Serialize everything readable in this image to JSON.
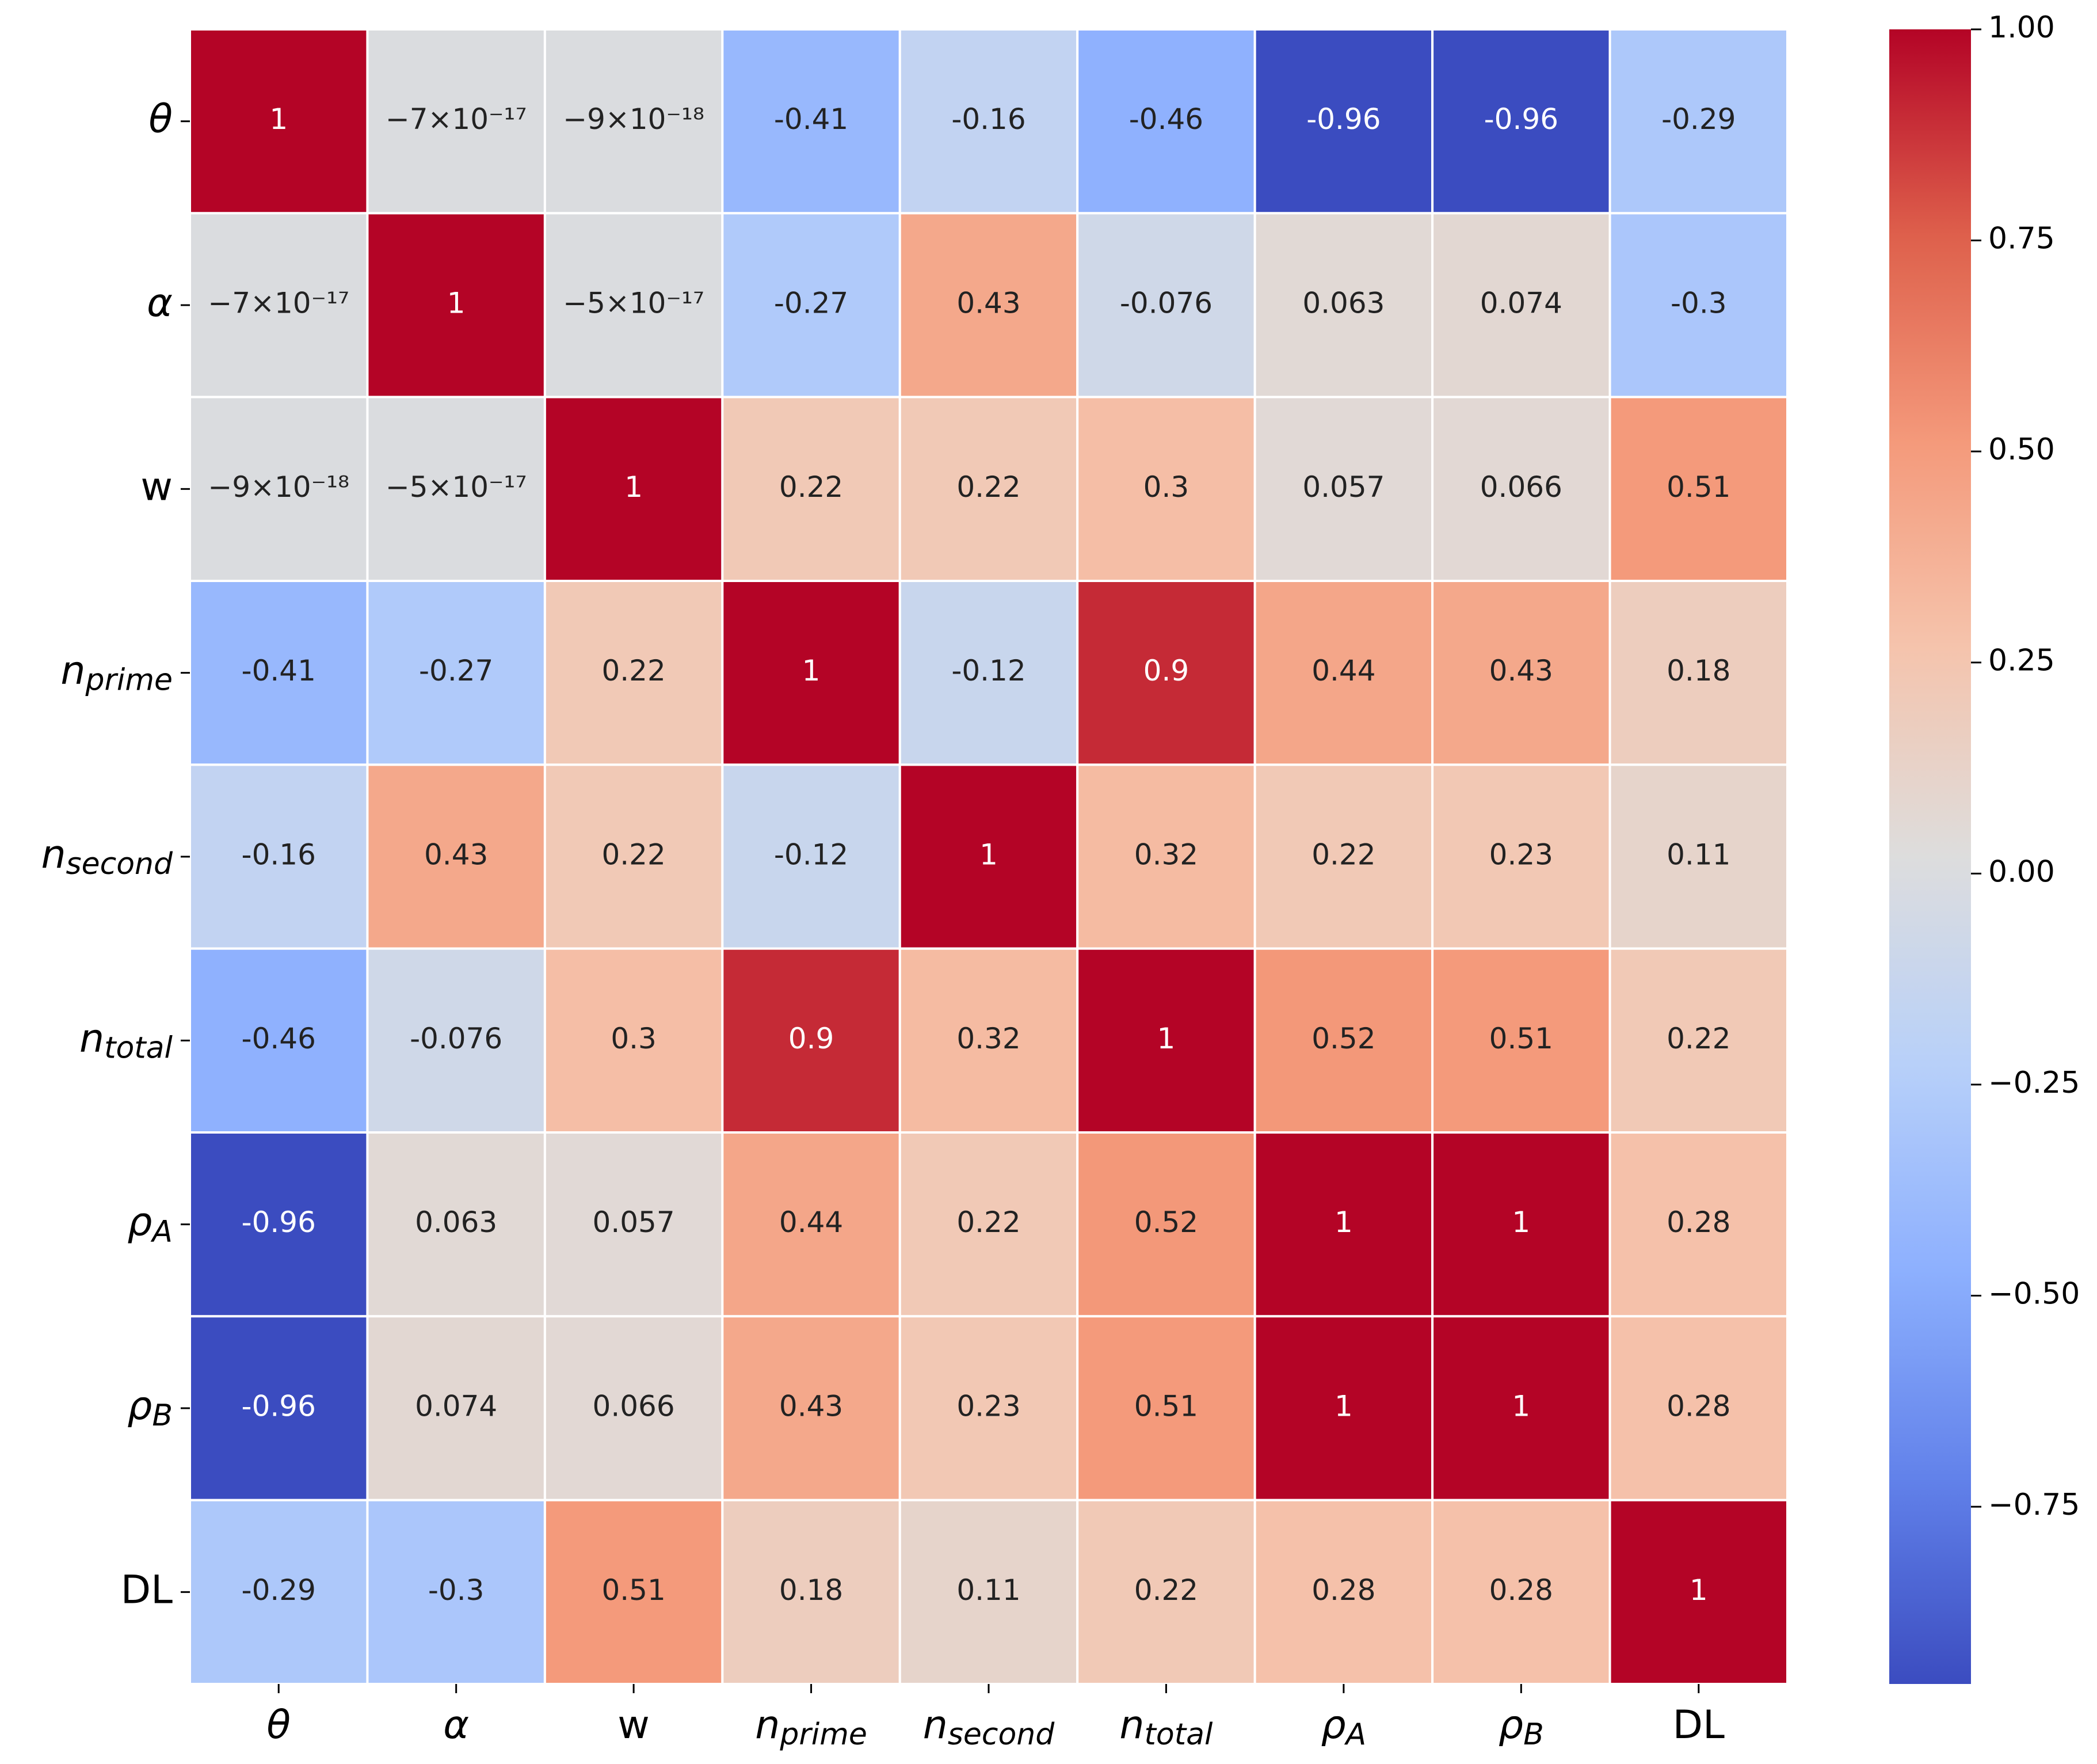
{
  "chart_data": {
    "type": "heatmap",
    "categories": [
      {
        "text": "θ",
        "italic": true
      },
      {
        "text": "α",
        "italic": true
      },
      {
        "text": "w",
        "italic": false
      },
      {
        "text": "n",
        "sub": "prime",
        "italic": true
      },
      {
        "text": "n",
        "sub": "second",
        "italic": true
      },
      {
        "text": "n",
        "sub": "total",
        "italic": true
      },
      {
        "text": "ρ",
        "sub": "A",
        "italic": true
      },
      {
        "text": "ρ",
        "sub": "B",
        "italic": true
      },
      {
        "text": "DL",
        "italic": false
      }
    ],
    "values": [
      [
        1,
        -7e-17,
        -9e-18,
        -0.41,
        -0.16,
        -0.46,
        -0.96,
        -0.96,
        -0.29
      ],
      [
        -7e-17,
        1,
        -5e-17,
        -0.27,
        0.43,
        -0.076,
        0.063,
        0.074,
        -0.3
      ],
      [
        -9e-18,
        -5e-17,
        1,
        0.22,
        0.22,
        0.3,
        0.057,
        0.066,
        0.51
      ],
      [
        -0.41,
        -0.27,
        0.22,
        1,
        -0.12,
        0.9,
        0.44,
        0.43,
        0.18
      ],
      [
        -0.16,
        0.43,
        0.22,
        -0.12,
        1,
        0.32,
        0.22,
        0.23,
        0.11
      ],
      [
        -0.46,
        -0.076,
        0.3,
        0.9,
        0.32,
        1,
        0.52,
        0.51,
        0.22
      ],
      [
        -0.96,
        0.063,
        0.057,
        0.44,
        0.22,
        0.52,
        1,
        1,
        0.28
      ],
      [
        -0.96,
        0.074,
        0.066,
        0.43,
        0.23,
        0.51,
        1,
        1,
        0.28
      ],
      [
        -0.29,
        -0.3,
        0.51,
        0.18,
        0.11,
        0.22,
        0.28,
        0.28,
        1
      ]
    ],
    "value_labels": [
      [
        "1",
        "−7×10⁻¹⁷",
        "−9×10⁻¹⁸",
        "-0.41",
        "-0.16",
        "-0.46",
        "-0.96",
        "-0.96",
        "-0.29"
      ],
      [
        "−7×10⁻¹⁷",
        "1",
        "−5×10⁻¹⁷",
        "-0.27",
        "0.43",
        "-0.076",
        "0.063",
        "0.074",
        "-0.3"
      ],
      [
        "−9×10⁻¹⁸",
        "−5×10⁻¹⁷",
        "1",
        "0.22",
        "0.22",
        "0.3",
        "0.057",
        "0.066",
        "0.51"
      ],
      [
        "-0.41",
        "-0.27",
        "0.22",
        "1",
        "-0.12",
        "0.9",
        "0.44",
        "0.43",
        "0.18"
      ],
      [
        "-0.16",
        "0.43",
        "0.22",
        "-0.12",
        "1",
        "0.32",
        "0.22",
        "0.23",
        "0.11"
      ],
      [
        "-0.46",
        "-0.076",
        "0.3",
        "0.9",
        "0.32",
        "1",
        "0.52",
        "0.51",
        "0.22"
      ],
      [
        "-0.96",
        "0.063",
        "0.057",
        "0.44",
        "0.22",
        "0.52",
        "1",
        "1",
        "0.28"
      ],
      [
        "-0.96",
        "0.074",
        "0.066",
        "0.43",
        "0.23",
        "0.51",
        "1",
        "1",
        "0.28"
      ],
      [
        "-0.29",
        "-0.3",
        "0.51",
        "0.18",
        "0.11",
        "0.22",
        "0.28",
        "0.28",
        "1"
      ]
    ],
    "colormap": "coolwarm",
    "clim": [
      -0.96,
      1
    ],
    "cticks": [
      {
        "value": 1,
        "label": "1.00"
      },
      {
        "value": 0.75,
        "label": "0.75"
      },
      {
        "value": 0.5,
        "label": "0.50"
      },
      {
        "value": 0.25,
        "label": "0.25"
      },
      {
        "value": 0,
        "label": "0.00"
      },
      {
        "value": -0.25,
        "label": "−0.25"
      },
      {
        "value": -0.5,
        "label": "−0.50"
      },
      {
        "value": -0.75,
        "label": "−0.75"
      }
    ]
  }
}
